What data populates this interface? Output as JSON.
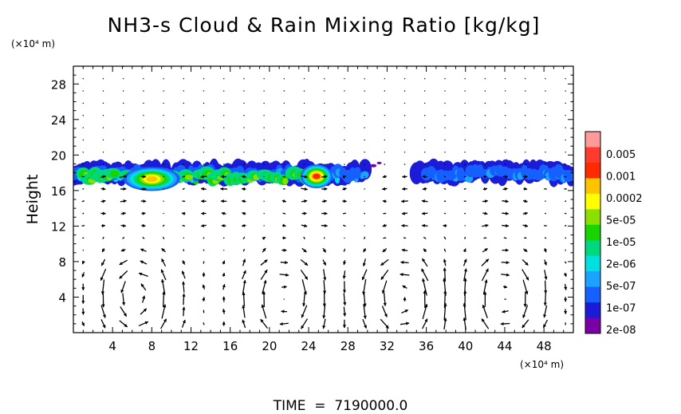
{
  "chart_data": {
    "type": "heatmap",
    "title": "NH3-s Cloud & Rain Mixing Ratio [kg/kg]",
    "ylabel": "Height",
    "y_unit": "(×10⁴ m)",
    "x_unit": "(×10⁴ m)",
    "xlim": [
      0,
      51
    ],
    "ylim": [
      0,
      30
    ],
    "x_ticks": [
      "4",
      "8",
      "12",
      "16",
      "20",
      "24",
      "28",
      "32",
      "36",
      "40",
      "44",
      "48"
    ],
    "y_ticks": [
      "4",
      "8",
      "12",
      "16",
      "20",
      "24",
      "28"
    ],
    "colorbar": {
      "labels": [
        "0.005",
        "0.001",
        "0.0002",
        "5e-05",
        "1e-05",
        "2e-06",
        "5e-07",
        "1e-07",
        "2e-08"
      ],
      "colors": [
        "#ff9a9a",
        "#ff3b2e",
        "#ff2a00",
        "#ffc400",
        "#ffff00",
        "#8ce000",
        "#18d400",
        "#00d880",
        "#00e0e0",
        "#1aa4ff",
        "#1560ff",
        "#1c1cd8",
        "#7a00a8"
      ]
    },
    "cloud_layer_height_range": [
      16.5,
      19.5
    ],
    "cloud_gap_x_range": [
      30,
      35
    ],
    "peak_cores": [
      {
        "x": 8,
        "y": 17.3,
        "level": "0.0002"
      },
      {
        "x": 24.8,
        "y": 17.6,
        "level": "0.001"
      }
    ],
    "circulation_cell_centers_x": [
      6.5,
      21.5,
      33.5,
      44
    ]
  },
  "footer": {
    "time_label": "TIME  =  7190000.0"
  }
}
